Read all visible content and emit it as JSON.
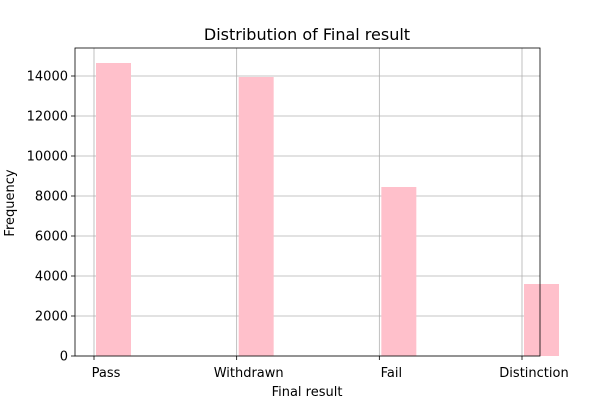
{
  "chart_data": {
    "type": "bar",
    "title": "Distribution of Final result",
    "xlabel": "Final result",
    "ylabel": "Frequency",
    "categories": [
      "Pass",
      "Withdrawn",
      "Fail",
      "Distinction"
    ],
    "values": [
      14650,
      13950,
      8450,
      3600
    ],
    "ylim": [
      0,
      15400
    ],
    "yticks": [
      0,
      2000,
      4000,
      6000,
      8000,
      10000,
      12000,
      14000
    ],
    "ytick_labels": [
      "0",
      "2000",
      "4000",
      "6000",
      "8000",
      "10000",
      "12000",
      "14000"
    ],
    "grid": true,
    "bar_color": "#ffc0cb"
  }
}
